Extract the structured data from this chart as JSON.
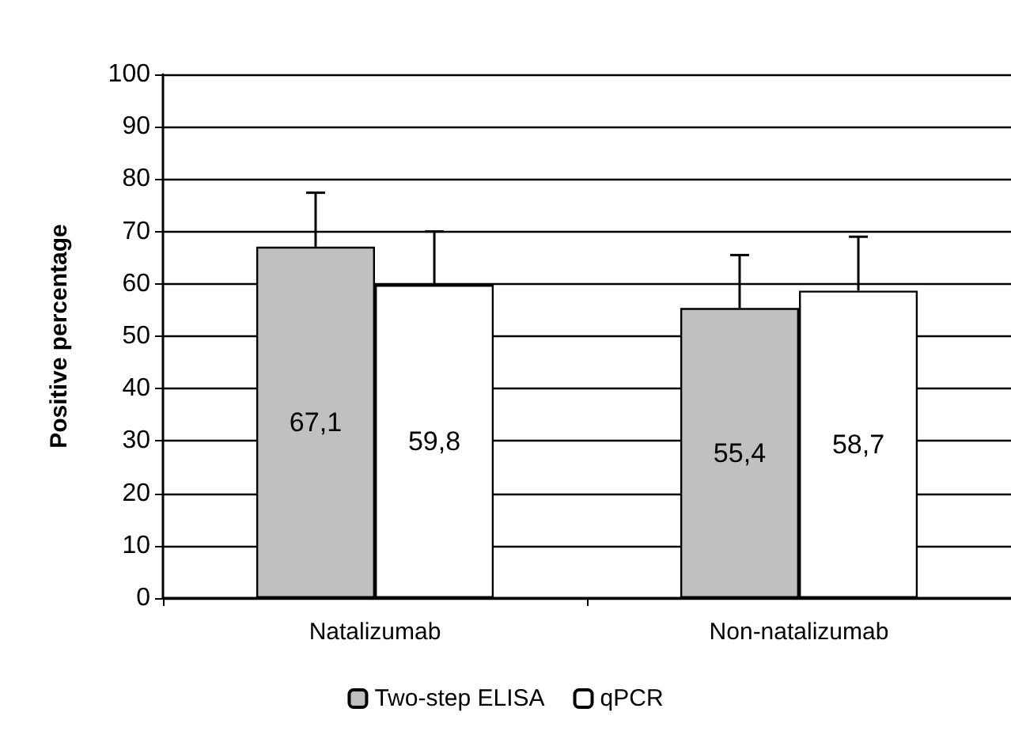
{
  "chart_data": {
    "type": "bar",
    "ylabel": "Positive percentage",
    "categories": [
      "Natalizumab",
      "Non-natalizumab"
    ],
    "series": [
      {
        "name": "Two-step ELISA",
        "color": "#c0c0c0",
        "values": [
          67.1,
          55.4
        ],
        "value_labels": [
          "67,1",
          "55,4"
        ],
        "errors": [
          [
            67.1,
            77.4
          ],
          [
            55.4,
            65.5
          ]
        ]
      },
      {
        "name": "qPCR",
        "color": "#ffffff",
        "values": [
          59.8,
          58.7
        ],
        "value_labels": [
          "59,8",
          "58,7"
        ],
        "errors": [
          [
            59.8,
            70
          ],
          [
            58.7,
            69
          ]
        ]
      }
    ],
    "ylim": [
      0,
      100
    ],
    "yticks": [
      0,
      10,
      20,
      30,
      40,
      50,
      60,
      70,
      80,
      90,
      100
    ],
    "grid": "y",
    "legend": "bottom"
  }
}
